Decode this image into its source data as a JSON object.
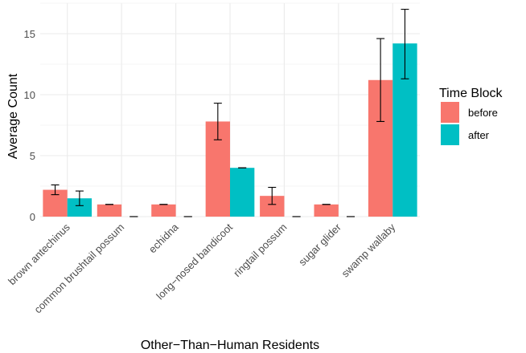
{
  "chart_data": {
    "type": "bar",
    "title": "",
    "xlabel": "Other−Than−Human Residents",
    "ylabel": "Average Count",
    "ylim": [
      0,
      17.5
    ],
    "yticks": [
      "0",
      "5",
      "10",
      "15"
    ],
    "grid": true,
    "legend_title": "Time Block",
    "legend_position": "right",
    "categories": [
      "brown antechinus",
      "common brushtail possum",
      "echidna",
      "long−nosed bandicoot",
      "ringtail possum",
      "sugar glider",
      "swamp wallaby"
    ],
    "series": [
      {
        "name": "before",
        "color": "#F8766D",
        "values": [
          2.2,
          1.0,
          1.0,
          7.8,
          1.7,
          1.0,
          11.2
        ],
        "error_low": [
          1.8,
          1.0,
          1.0,
          6.3,
          1.0,
          1.0,
          7.8
        ],
        "error_high": [
          2.6,
          1.0,
          1.0,
          9.3,
          2.4,
          1.0,
          14.6
        ]
      },
      {
        "name": "after",
        "color": "#00BFC4",
        "values": [
          1.5,
          0.0,
          0.0,
          4.0,
          0.0,
          0.0,
          14.2
        ],
        "error_low": [
          0.9,
          0.0,
          0.0,
          4.0,
          0.0,
          0.0,
          11.3
        ],
        "error_high": [
          2.1,
          0.0,
          0.0,
          4.0,
          0.0,
          0.0,
          17.0
        ]
      }
    ]
  }
}
